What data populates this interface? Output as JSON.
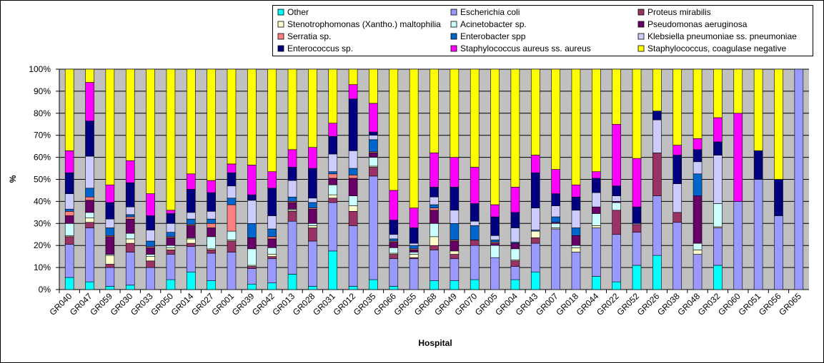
{
  "chart_data": {
    "type": "stacked_bar_percent",
    "x_label": "Hospital",
    "y_label": "%",
    "categories": [
      "GR040",
      "GR047",
      "GR059",
      "GR030",
      "GR033",
      "GR050",
      "GR014",
      "GR027",
      "GR001",
      "GR039",
      "GR042",
      "GR013",
      "GR028",
      "GR031",
      "GR012",
      "GR035",
      "GR066",
      "GR055",
      "GR068",
      "GR049",
      "GR070",
      "GR005",
      "GR004",
      "GR043",
      "GR007",
      "GR018",
      "GR044",
      "GR022",
      "GR052",
      "GR026",
      "GR038",
      "GR048",
      "GR032",
      "GR060",
      "GR051",
      "GR056",
      "GR065"
    ],
    "ylim": [
      0,
      100
    ],
    "yticks": [
      {
        "value": 0,
        "label": "0%"
      },
      {
        "value": 10,
        "label": "10%"
      },
      {
        "value": 20,
        "label": "20%"
      },
      {
        "value": 30,
        "label": "30%"
      },
      {
        "value": 40,
        "label": "40%"
      },
      {
        "value": 50,
        "label": "50%"
      },
      {
        "value": 60,
        "label": "60%"
      },
      {
        "value": 70,
        "label": "70%"
      },
      {
        "value": 80,
        "label": "80%"
      },
      {
        "value": 90,
        "label": "90%"
      },
      {
        "value": 100,
        "label": "100%"
      }
    ],
    "grid": true,
    "series": [
      {
        "name": "Other",
        "color": "#00ffff",
        "values": [
          5.5,
          3.5,
          1.5,
          2,
          0,
          4.5,
          8,
          4,
          0,
          2.5,
          3,
          7,
          1.5,
          17.5,
          1.5,
          4.5,
          1.5,
          0,
          4,
          4,
          4.5,
          0,
          4.5,
          8,
          0,
          0,
          6,
          3.5,
          11,
          15.5,
          0,
          0,
          11,
          0,
          0,
          0,
          0
        ]
      },
      {
        "name": "Escherichia coli",
        "color": "#9999ff",
        "values": [
          15,
          24.5,
          8.5,
          15,
          10,
          11.5,
          11.5,
          12.5,
          17,
          7,
          11,
          24,
          20.5,
          22,
          27.5,
          47,
          12.5,
          14,
          14,
          10,
          15.5,
          14.5,
          6,
          13,
          27.5,
          17,
          22,
          21.5,
          15,
          27,
          30.5,
          16,
          17,
          40,
          50,
          33.5,
          100
        ]
      },
      {
        "name": "Proteus mirabilis",
        "color": "#993366",
        "values": [
          3.5,
          2.5,
          1.5,
          4,
          3,
          2,
          1.5,
          1.5,
          5,
          1,
          1,
          4.5,
          6,
          2,
          6.5,
          4,
          2,
          0.5,
          2,
          2,
          2.5,
          0,
          2.5,
          2.5,
          0,
          0,
          0,
          11,
          3.5,
          19.5,
          4.5,
          0,
          0,
          0,
          0,
          0,
          0
        ]
      },
      {
        "name": "Stenotrophomonas (Xantho.) maltophilia",
        "color": "#ffffcc",
        "values": [
          0.5,
          2,
          4,
          2,
          2,
          1,
          2,
          0.5,
          0.5,
          0.5,
          1,
          0.5,
          1,
          1.5,
          2.5,
          0.5,
          0.5,
          1.5,
          4,
          1.5,
          0,
          0,
          0.5,
          3,
          0.5,
          2,
          1,
          0,
          0,
          0,
          0,
          2,
          0.5,
          0,
          0,
          0,
          0
        ]
      },
      {
        "name": "Acinetobacter sp.",
        "color": "#ccffff",
        "values": [
          5.5,
          2.5,
          0.5,
          2.5,
          1,
          1,
          0.5,
          5.5,
          4,
          7.5,
          3,
          0.5,
          1,
          4.5,
          4.5,
          4,
          2.5,
          1,
          6,
          0,
          0,
          5.5,
          5,
          0,
          2,
          1,
          5.5,
          3.5,
          0,
          0,
          0,
          3,
          10.5,
          0,
          0,
          0,
          0
        ]
      },
      {
        "name": "Pseudomonas aeruginosa",
        "color": "#660066",
        "values": [
          3.5,
          5.5,
          8,
          6.5,
          3,
          3.5,
          5.5,
          4,
          0,
          5,
          4,
          3,
          6.5,
          3,
          8,
          2,
          2.5,
          1,
          6,
          4.5,
          0,
          1,
          2.5,
          0,
          0.5,
          4.5,
          3,
          0.5,
          0,
          0,
          0,
          21.5,
          0,
          0,
          0,
          0,
          0
        ]
      },
      {
        "name": "Serratia sp.",
        "color": "#ff8080",
        "values": [
          2,
          1.5,
          0.5,
          1,
          0.5,
          0.5,
          0.5,
          2,
          12,
          0,
          1,
          0.5,
          0.5,
          2,
          1.5,
          0.5,
          0.5,
          0.5,
          1,
          0.5,
          0,
          0.5,
          0,
          0,
          0,
          0,
          0,
          0,
          0,
          0,
          0,
          0,
          0,
          0,
          0,
          0,
          0
        ]
      },
      {
        "name": "Enterobacter spp",
        "color": "#0066cc",
        "values": [
          1,
          4,
          3.5,
          1,
          2.5,
          2,
          2.5,
          2,
          3,
          6.5,
          3.5,
          2,
          2.5,
          1,
          3,
          5.5,
          1,
          1.5,
          1.5,
          7.5,
          6.5,
          1,
          0.5,
          0.5,
          2.5,
          3.5,
          0,
          0,
          0,
          0,
          0,
          10,
          0,
          0,
          0,
          0,
          0
        ]
      },
      {
        "name": "Klebsiella pneumoniae ss. pneumoniae",
        "color": "#ccccff",
        "values": [
          7,
          14.5,
          4,
          3.5,
          5,
          4,
          3,
          3.5,
          5.5,
          10.5,
          6,
          7.5,
          2,
          8,
          8,
          2,
          2,
          1,
          3.5,
          6,
          2,
          2,
          6.5,
          10,
          5,
          8,
          6.5,
          2.5,
          0.5,
          15,
          13,
          5.5,
          22,
          0,
          0,
          0,
          0
        ]
      },
      {
        "name": "Enterococcus sp.",
        "color": "#000080",
        "values": [
          9.5,
          16,
          7.5,
          11,
          6.5,
          4.5,
          10.5,
          8.5,
          6,
          2.5,
          12.5,
          6,
          13.5,
          8,
          23.5,
          1.5,
          6.5,
          7,
          4.5,
          10.5,
          8,
          8.5,
          7,
          16,
          5.5,
          6,
          6.5,
          4.5,
          7.5,
          4,
          13,
          5.5,
          6,
          0,
          13,
          16.5,
          0
        ]
      },
      {
        "name": "Staphylococcus aureus ss. aureus",
        "color": "#ff00ff",
        "values": [
          10,
          17.5,
          8,
          10,
          10,
          1.5,
          7,
          5.5,
          4,
          13.5,
          7.5,
          8,
          9.5,
          6,
          6.5,
          13,
          13.5,
          9,
          15.5,
          13.5,
          16.5,
          5.5,
          11.5,
          8,
          11,
          5.5,
          3,
          28,
          22,
          0,
          4.5,
          5,
          11,
          40,
          0,
          0,
          0
        ]
      },
      {
        "name": "Staphylococcus, coagulase negative",
        "color": "#ffff00",
        "values": [
          37,
          6,
          52.5,
          41.5,
          56.5,
          64,
          47.5,
          50.5,
          43,
          43.5,
          46.5,
          36.5,
          35.5,
          24.5,
          7,
          15.5,
          55,
          63,
          38,
          40,
          44.5,
          61.5,
          53.5,
          39,
          45.5,
          52.5,
          46.5,
          25,
          40.5,
          19,
          34.5,
          31.5,
          22,
          20,
          37,
          50,
          0
        ]
      }
    ]
  }
}
